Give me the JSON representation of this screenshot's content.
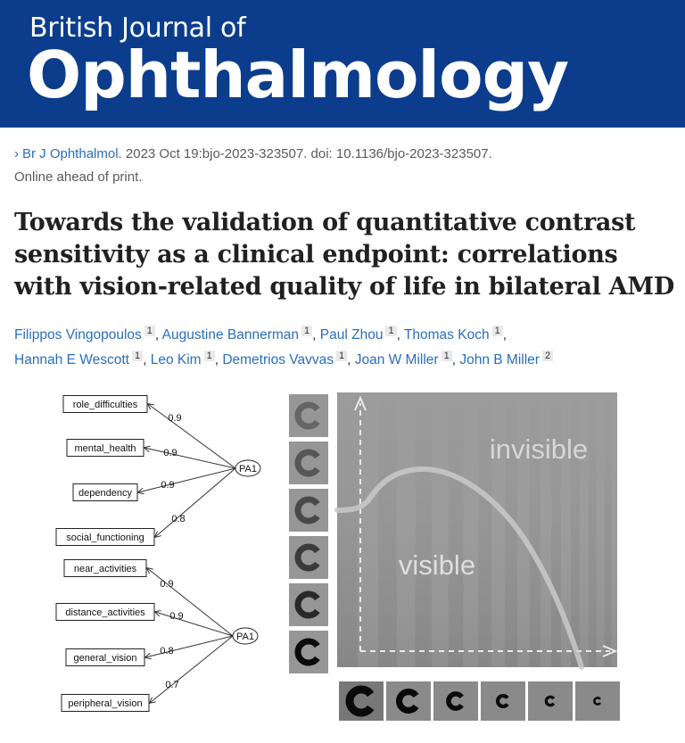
{
  "journal": {
    "line1": "British Journal of",
    "line2": "Ophthalmology"
  },
  "citation": {
    "journal_abbrev": "Br J Ophthalmol.",
    "details": " 2023 Oct 19:bjo-2023-323507. doi: 10.1136/bjo-2023-323507.",
    "status": "Online ahead of print."
  },
  "article_title": "Towards the validation of quantitative contrast sensitivity as a clinical endpoint: correlations with vision-related quality of life in bilateral AMD",
  "authors": [
    {
      "name": "Filippos Vingopoulos",
      "aff": "1"
    },
    {
      "name": "Augustine Bannerman",
      "aff": "1"
    },
    {
      "name": "Paul Zhou",
      "aff": "1"
    },
    {
      "name": "Thomas Koch",
      "aff": "1"
    },
    {
      "name": "Hannah E Wescott",
      "aff": "1"
    },
    {
      "name": "Leo Kim",
      "aff": "1"
    },
    {
      "name": "Demetrios Vavvas",
      "aff": "1"
    },
    {
      "name": "Joan W Miller",
      "aff": "1"
    },
    {
      "name": "John B Miller",
      "aff": "2"
    }
  ],
  "diagram": {
    "factor_label": "PA1",
    "groups": [
      {
        "items": [
          {
            "label": "role_difficulties",
            "loading": "0.9"
          },
          {
            "label": "mental_health",
            "loading": "0.9"
          },
          {
            "label": "dependency",
            "loading": "0.9"
          },
          {
            "label": "social_functioning",
            "loading": "0.8"
          }
        ]
      },
      {
        "items": [
          {
            "label": "near_activities",
            "loading": "0.9"
          },
          {
            "label": "distance_activities",
            "loading": "0.9"
          },
          {
            "label": "general_vision",
            "loading": "0.8"
          },
          {
            "label": "peripheral_vision",
            "loading": "0.7"
          }
        ]
      }
    ]
  },
  "csf_figure": {
    "label_invisible": "invisible",
    "label_visible": "visible",
    "contrast_levels": [
      0.35,
      0.45,
      0.55,
      0.65,
      0.78,
      1.0
    ],
    "size_levels": [
      1.0,
      0.8,
      0.62,
      0.46,
      0.36,
      0.28
    ]
  }
}
